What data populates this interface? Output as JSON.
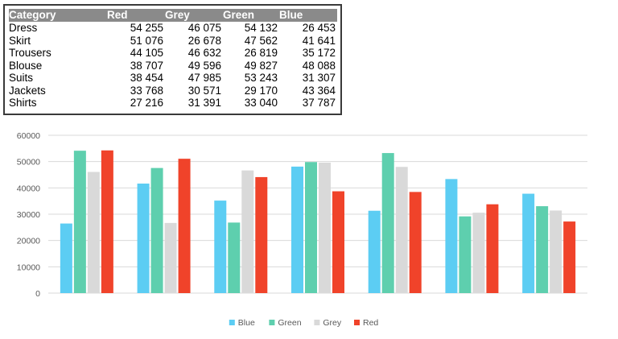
{
  "table": {
    "headers": [
      "Category",
      "Red",
      "Grey",
      "Green",
      "Blue"
    ],
    "rows": [
      [
        "Dress",
        "54 255",
        "46 075",
        "54 132",
        "26 453"
      ],
      [
        "Skirt",
        "51 076",
        "26 678",
        "47 562",
        "41 641"
      ],
      [
        "Trousers",
        "44 105",
        "46 632",
        "26 819",
        "35 172"
      ],
      [
        "Blouse",
        "38 707",
        "49 596",
        "49 827",
        "48 088"
      ],
      [
        "Suits",
        "38 454",
        "47 985",
        "53 243",
        "31 307"
      ],
      [
        "Jackets",
        "33 768",
        "30 571",
        "29 170",
        "43 364"
      ],
      [
        "Shirts",
        "27 216",
        "31 391",
        "33 040",
        "37 787"
      ]
    ]
  },
  "chart_data": {
    "type": "bar",
    "categories": [
      "Dress",
      "Skirt",
      "Trousers",
      "Blouse",
      "Suits",
      "Jackets",
      "Shirts"
    ],
    "show_category_labels": false,
    "series": [
      {
        "name": "Blue",
        "color": "#5ccdf3",
        "values": [
          26453,
          41641,
          35172,
          48088,
          31307,
          43364,
          37787
        ]
      },
      {
        "name": "Green",
        "color": "#5ecfae",
        "values": [
          54132,
          47562,
          26819,
          49827,
          53243,
          29170,
          33040
        ]
      },
      {
        "name": "Grey",
        "color": "#d9d9d9",
        "values": [
          46075,
          26678,
          46632,
          49596,
          47985,
          30571,
          31391
        ]
      },
      {
        "name": "Red",
        "color": "#f0432a",
        "values": [
          54255,
          51076,
          44105,
          38707,
          38454,
          33768,
          27216
        ]
      }
    ],
    "ylim": [
      0,
      60000
    ],
    "yticks": [
      0,
      10000,
      20000,
      30000,
      40000,
      50000,
      60000
    ],
    "grid": true,
    "legend_position": "bottom",
    "title": "",
    "xlabel": "",
    "ylabel": ""
  }
}
